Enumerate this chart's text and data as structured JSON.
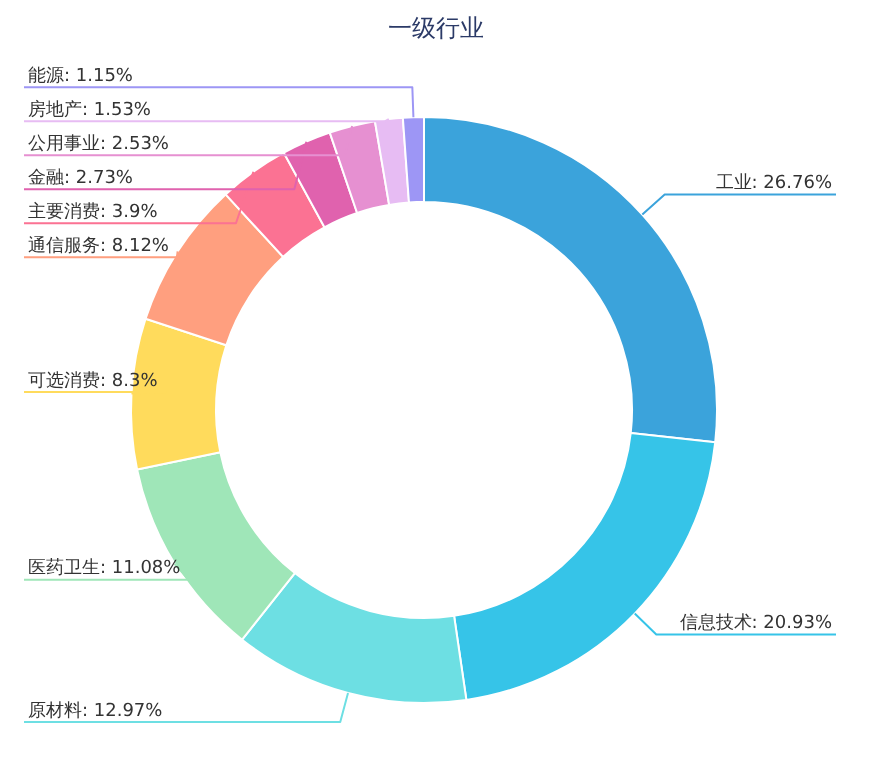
{
  "chart_data": {
    "type": "donut",
    "title": "一级行业",
    "categories": [
      "工业",
      "信息技术",
      "原材料",
      "医药卫生",
      "可选消费",
      "通信服务",
      "主要消费",
      "金融",
      "公用事业",
      "房地产",
      "能源"
    ],
    "values": [
      26.76,
      20.93,
      12.97,
      11.08,
      8.3,
      8.12,
      3.9,
      2.73,
      2.53,
      1.53,
      1.15
    ],
    "value_labels": [
      "26.76%",
      "20.93%",
      "12.97%",
      "11.08%",
      "8.3%",
      "8.12%",
      "3.9%",
      "2.73%",
      "2.53%",
      "1.53%",
      "1.15%"
    ],
    "colors": [
      "#3ba3db",
      "#36c4e8",
      "#6ddfe3",
      "#9fe6b8",
      "#ffdb5c",
      "#ff9f7f",
      "#fb7293",
      "#e062ae",
      "#e690d1",
      "#e7bcf3",
      "#9d96f5"
    ],
    "legend": false
  }
}
